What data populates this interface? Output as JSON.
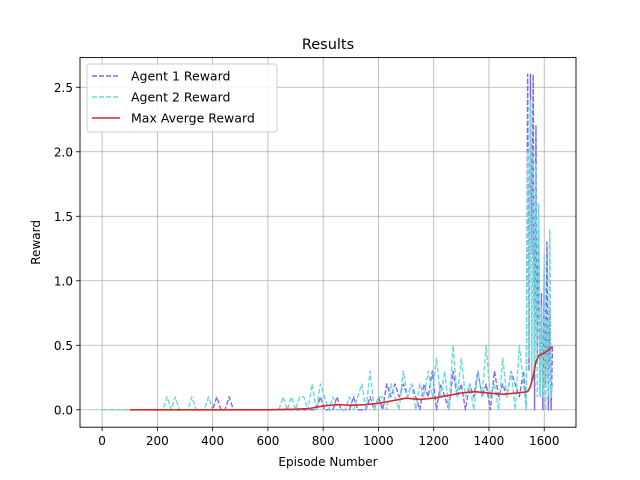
{
  "chart_data": {
    "type": "line",
    "title": "Results",
    "xlabel": "Episode Number",
    "ylabel": "Reward",
    "xlim": [
      -80,
      1715
    ],
    "ylim": [
      -0.135,
      2.73
    ],
    "xticks": [
      0,
      200,
      400,
      600,
      800,
      1000,
      1200,
      1400,
      1600
    ],
    "yticks": [
      0.0,
      0.5,
      1.0,
      1.5,
      2.0,
      2.5
    ],
    "xtick_labels": [
      "0",
      "200",
      "400",
      "600",
      "800",
      "1000",
      "1200",
      "1400",
      "1600"
    ],
    "ytick_labels": [
      "0.0",
      "0.5",
      "1.0",
      "1.5",
      "2.0",
      "2.5"
    ],
    "grid": true,
    "legend_position": "top-left",
    "series": [
      {
        "name": "Agent 1 Reward",
        "color": "#7b68ee",
        "style": "dashed",
        "x": [
          0,
          10,
          25,
          40,
          55,
          70,
          85,
          100,
          115,
          130,
          145,
          160,
          175,
          190,
          205,
          220,
          235,
          250,
          265,
          280,
          295,
          310,
          325,
          340,
          355,
          370,
          385,
          400,
          415,
          430,
          445,
          460,
          475,
          490,
          505,
          520,
          535,
          550,
          565,
          580,
          595,
          610,
          625,
          640,
          655,
          670,
          685,
          700,
          715,
          730,
          745,
          760,
          775,
          790,
          805,
          820,
          835,
          850,
          865,
          880,
          895,
          910,
          925,
          940,
          955,
          970,
          985,
          1000,
          1015,
          1030,
          1045,
          1060,
          1075,
          1090,
          1105,
          1120,
          1135,
          1150,
          1165,
          1180,
          1195,
          1210,
          1225,
          1240,
          1255,
          1270,
          1285,
          1300,
          1315,
          1330,
          1345,
          1360,
          1375,
          1390,
          1405,
          1420,
          1435,
          1450,
          1465,
          1480,
          1495,
          1510,
          1525,
          1535,
          1540,
          1545,
          1550,
          1555,
          1560,
          1565,
          1570,
          1575,
          1580,
          1585,
          1590,
          1595,
          1600,
          1605,
          1610,
          1615,
          1620,
          1625,
          1630
        ],
        "y": [
          0.0,
          0.0,
          0.0,
          0.0,
          0.0,
          0.0,
          0.0,
          0.0,
          0.0,
          0.0,
          0.0,
          0.0,
          0.0,
          0.0,
          0.0,
          0.0,
          0.0,
          0.0,
          0.0,
          0.0,
          0.0,
          0.0,
          0.0,
          0.0,
          0.0,
          0.0,
          0.0,
          0.0,
          0.1,
          0.0,
          0.0,
          0.1,
          0.0,
          0.0,
          0.0,
          0.0,
          0.0,
          0.0,
          0.0,
          0.0,
          0.0,
          0.0,
          0.0,
          0.0,
          0.0,
          0.0,
          0.0,
          0.0,
          0.0,
          0.0,
          0.0,
          0.0,
          0.0,
          0.1,
          0.0,
          0.0,
          0.0,
          0.1,
          0.0,
          0.0,
          0.0,
          0.1,
          0.0,
          0.0,
          0.0,
          0.1,
          0.0,
          0.1,
          0.0,
          0.2,
          0.1,
          0.2,
          0.1,
          0.2,
          0.1,
          0.2,
          0.1,
          0.0,
          0.2,
          0.1,
          0.3,
          0.0,
          0.2,
          0.1,
          0.0,
          0.3,
          0.1,
          0.2,
          0.0,
          0.2,
          0.1,
          0.3,
          0.1,
          0.2,
          0.0,
          0.3,
          0.1,
          0.2,
          0.1,
          0.3,
          0.2,
          0.1,
          0.3,
          0.0,
          2.6,
          0.3,
          2.6,
          1.2,
          2.6,
          0.0,
          2.2,
          0.4,
          1.4,
          0.1,
          0.9,
          0.0,
          1.1,
          0.2,
          1.3,
          0.0,
          0.8,
          0.0,
          0.5
        ]
      },
      {
        "name": "Agent 2 Reward",
        "color": "#6fd8d8",
        "style": "dashed",
        "x": [
          0,
          10,
          25,
          40,
          55,
          70,
          85,
          100,
          115,
          130,
          145,
          160,
          175,
          190,
          205,
          220,
          235,
          250,
          265,
          280,
          295,
          310,
          325,
          340,
          355,
          370,
          385,
          400,
          415,
          430,
          445,
          460,
          475,
          490,
          505,
          520,
          535,
          550,
          565,
          580,
          595,
          610,
          625,
          640,
          655,
          670,
          685,
          700,
          715,
          730,
          745,
          760,
          775,
          790,
          805,
          820,
          835,
          850,
          865,
          880,
          895,
          910,
          925,
          940,
          955,
          970,
          985,
          1000,
          1015,
          1030,
          1045,
          1060,
          1075,
          1090,
          1105,
          1120,
          1135,
          1150,
          1165,
          1180,
          1195,
          1210,
          1225,
          1240,
          1255,
          1270,
          1285,
          1300,
          1315,
          1330,
          1345,
          1360,
          1375,
          1390,
          1405,
          1420,
          1435,
          1450,
          1465,
          1480,
          1495,
          1510,
          1525,
          1535,
          1540,
          1545,
          1550,
          1555,
          1560,
          1565,
          1570,
          1575,
          1580,
          1585,
          1590,
          1595,
          1600,
          1605,
          1610,
          1615,
          1620,
          1625,
          1630
        ],
        "y": [
          0.0,
          0.0,
          0.0,
          0.0,
          0.0,
          0.0,
          0.0,
          0.0,
          0.0,
          0.0,
          0.0,
          0.0,
          0.0,
          0.0,
          0.0,
          0.0,
          0.1,
          0.0,
          0.1,
          0.0,
          0.0,
          0.0,
          0.1,
          0.0,
          0.0,
          0.0,
          0.1,
          0.0,
          0.0,
          0.0,
          0.0,
          0.0,
          0.0,
          0.0,
          0.0,
          0.0,
          0.0,
          0.0,
          0.0,
          0.0,
          0.0,
          0.0,
          0.0,
          0.0,
          0.1,
          0.0,
          0.1,
          0.0,
          0.1,
          0.1,
          0.0,
          0.2,
          0.0,
          0.2,
          0.1,
          0.0,
          0.1,
          0.0,
          0.0,
          0.0,
          0.1,
          0.0,
          0.1,
          0.2,
          0.0,
          0.3,
          0.0,
          0.1,
          0.1,
          0.0,
          0.2,
          0.1,
          0.0,
          0.3,
          0.1,
          0.2,
          0.0,
          0.2,
          0.1,
          0.3,
          0.1,
          0.4,
          0.1,
          0.3,
          0.0,
          0.5,
          0.1,
          0.4,
          0.1,
          0.2,
          0.0,
          0.3,
          0.1,
          0.5,
          0.1,
          0.2,
          0.0,
          0.4,
          0.1,
          0.3,
          0.0,
          0.5,
          0.2,
          0.0,
          2.0,
          0.4,
          2.4,
          0.2,
          2.0,
          0.3,
          1.9,
          0.1,
          1.6,
          0.1,
          0.8,
          0.1,
          1.2,
          0.0,
          0.7,
          0.1,
          1.4,
          0.1,
          0.2
        ]
      },
      {
        "name": "Max Averge Reward",
        "color": "#d62728",
        "style": "solid",
        "x": [
          100,
          200,
          300,
          400,
          500,
          600,
          700,
          750,
          800,
          850,
          900,
          950,
          1000,
          1050,
          1100,
          1150,
          1200,
          1250,
          1300,
          1350,
          1400,
          1450,
          1500,
          1540,
          1550,
          1560,
          1570,
          1580,
          1600,
          1620,
          1630
        ],
        "y": [
          0.0,
          0.0,
          0.0,
          0.0,
          0.0,
          0.0,
          0.005,
          0.01,
          0.03,
          0.04,
          0.035,
          0.04,
          0.05,
          0.07,
          0.09,
          0.08,
          0.09,
          0.11,
          0.13,
          0.14,
          0.13,
          0.12,
          0.13,
          0.14,
          0.18,
          0.26,
          0.37,
          0.42,
          0.44,
          0.47,
          0.49
        ]
      }
    ]
  }
}
